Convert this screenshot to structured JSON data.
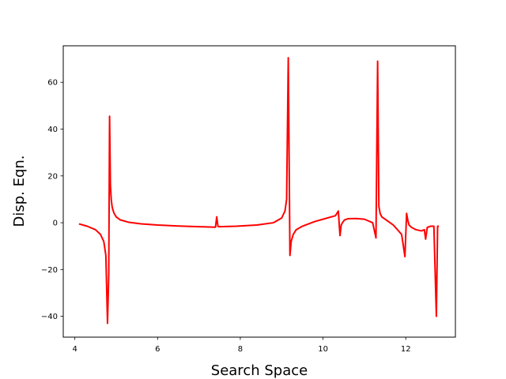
{
  "chart_data": {
    "type": "line",
    "title": "",
    "xlabel": "Search Space",
    "ylabel": "Disp. Eqn.",
    "xlim": [
      3.72,
      13.2
    ],
    "ylim": [
      -48.9,
      75.6
    ],
    "xticks": [
      4,
      6,
      8,
      10,
      12
    ],
    "yticks": [
      -40,
      -20,
      0,
      20,
      40,
      60
    ],
    "grid": false,
    "legend": "none",
    "series": [
      {
        "color": "#ff0000",
        "x": [
          4.1,
          4.3,
          4.5,
          4.62,
          4.7,
          4.75,
          4.79,
          4.82,
          4.84,
          4.86,
          4.88,
          4.9,
          4.92,
          4.95,
          5.0,
          5.1,
          5.3,
          5.6,
          6.0,
          6.5,
          7.0,
          7.4,
          7.43,
          7.46,
          7.5,
          7.9,
          8.4,
          8.8,
          9.0,
          9.08,
          9.12,
          9.16,
          9.2,
          9.23,
          9.28,
          9.35,
          9.5,
          9.8,
          10.0,
          10.3,
          10.37,
          10.41,
          10.44,
          10.47,
          10.52,
          10.6,
          10.8,
          11.0,
          11.2,
          11.28,
          11.32,
          11.35,
          11.38,
          11.42,
          11.5,
          11.7,
          11.9,
          11.98,
          12.02,
          12.05,
          12.08,
          12.14,
          12.25,
          12.38,
          12.45,
          12.48,
          12.52,
          12.6,
          12.68,
          12.74,
          12.77,
          12.8
        ],
        "y": [
          -0.5,
          -1.5,
          -3,
          -5,
          -8,
          -14,
          -43,
          -22,
          45.5,
          16,
          10,
          7,
          5.5,
          4,
          2.5,
          1.2,
          0.2,
          -0.5,
          -1.0,
          -1.4,
          -1.7,
          -1.9,
          2.5,
          -1.6,
          -1.7,
          -1.5,
          -1.0,
          0,
          2,
          5,
          10,
          70.5,
          -14,
          -8,
          -5,
          -3,
          -1.5,
          0.5,
          1.5,
          3,
          5,
          -5.5,
          -1,
          0,
          1.2,
          1.7,
          1.8,
          1.5,
          0,
          -6.5,
          69,
          7,
          4,
          2.5,
          1.5,
          -1,
          -5,
          -14.5,
          4,
          1,
          -1,
          -2,
          -3,
          -3.5,
          -3,
          -7,
          -2,
          -1.5,
          -1.5,
          -40,
          -1.5,
          -1.5
        ]
      }
    ]
  }
}
